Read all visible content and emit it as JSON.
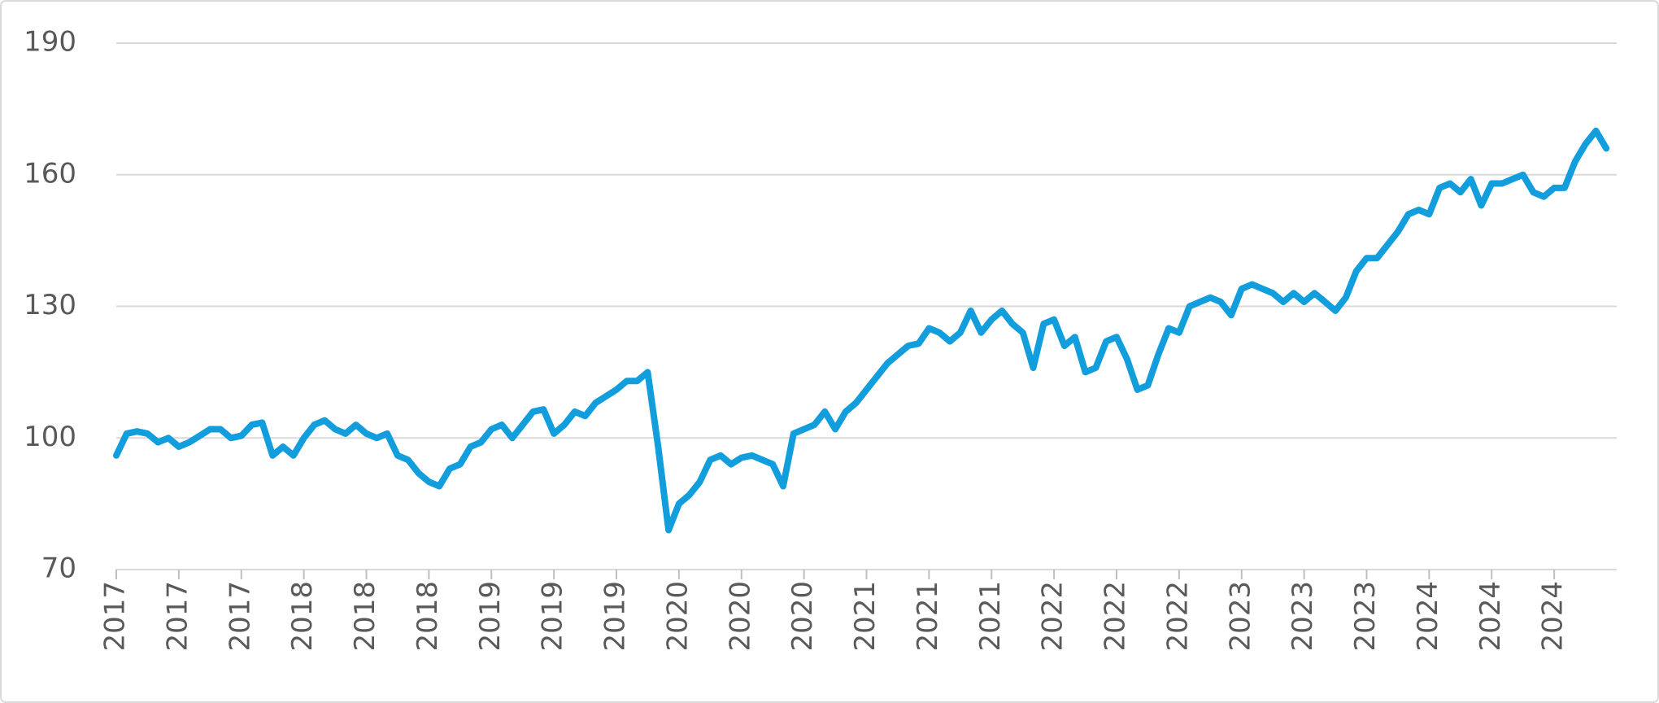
{
  "chart_data": {
    "type": "line",
    "categories": [
      "2017",
      null,
      null,
      null,
      null,
      null,
      "2017",
      null,
      null,
      null,
      null,
      null,
      "2017",
      null,
      null,
      null,
      null,
      null,
      "2018",
      null,
      null,
      null,
      null,
      null,
      "2018",
      null,
      null,
      null,
      null,
      null,
      "2018",
      null,
      null,
      null,
      null,
      null,
      "2019",
      null,
      null,
      null,
      null,
      null,
      "2019",
      null,
      null,
      null,
      null,
      null,
      "2019",
      null,
      null,
      null,
      null,
      null,
      "2020",
      null,
      null,
      null,
      null,
      null,
      "2020",
      null,
      null,
      null,
      null,
      null,
      "2020",
      null,
      null,
      null,
      null,
      null,
      "2021",
      null,
      null,
      null,
      null,
      null,
      "2021",
      null,
      null,
      null,
      null,
      null,
      "2021",
      null,
      null,
      null,
      null,
      null,
      "2022",
      null,
      null,
      null,
      null,
      null,
      "2022",
      null,
      null,
      null,
      null,
      null,
      "2022",
      null,
      null,
      null,
      null,
      null,
      "2023",
      null,
      null,
      null,
      null,
      null,
      "2023",
      null,
      null,
      null,
      null,
      null,
      "2023",
      null,
      null,
      null,
      null,
      null,
      "2024",
      null,
      null,
      null,
      null,
      null,
      "2024",
      null,
      null,
      null,
      null,
      null,
      "2024",
      null,
      null,
      null,
      null,
      null
    ],
    "series": [
      {
        "color": "#129ddc",
        "values": [
          96,
          101,
          101.5,
          101,
          99,
          100,
          98,
          99,
          100.5,
          102,
          102,
          100,
          100.5,
          103,
          103.5,
          96,
          98,
          96,
          100,
          103,
          104,
          102,
          101,
          103,
          101,
          100,
          101,
          96,
          95,
          92,
          90,
          89,
          93,
          94,
          98,
          99,
          102,
          103,
          100,
          103,
          106,
          106.5,
          101,
          103,
          106,
          105,
          108,
          109.5,
          111,
          113,
          113,
          115,
          98,
          79,
          85,
          87,
          90,
          95,
          96,
          94,
          95.5,
          96,
          95,
          94,
          89,
          101,
          102,
          103,
          106,
          102,
          106,
          108,
          111,
          114,
          117,
          119,
          121,
          121.5,
          125,
          124,
          122,
          124,
          129,
          124,
          127,
          129,
          126,
          124,
          116,
          126,
          127,
          121,
          123,
          115,
          116,
          122,
          123,
          118,
          111,
          112,
          119,
          125,
          124,
          130,
          131,
          132,
          131,
          128,
          134,
          135,
          134,
          133,
          131,
          133,
          131,
          133,
          131,
          129,
          132,
          138,
          141,
          141,
          144,
          147,
          151,
          152,
          151,
          157,
          158,
          156,
          159,
          153,
          158,
          158,
          159,
          160,
          156,
          155,
          157,
          157,
          163,
          167,
          170,
          166
        ]
      }
    ],
    "ylim": [
      70,
      190
    ],
    "yticks": [
      70,
      100,
      130,
      160,
      190
    ],
    "grid": true
  }
}
